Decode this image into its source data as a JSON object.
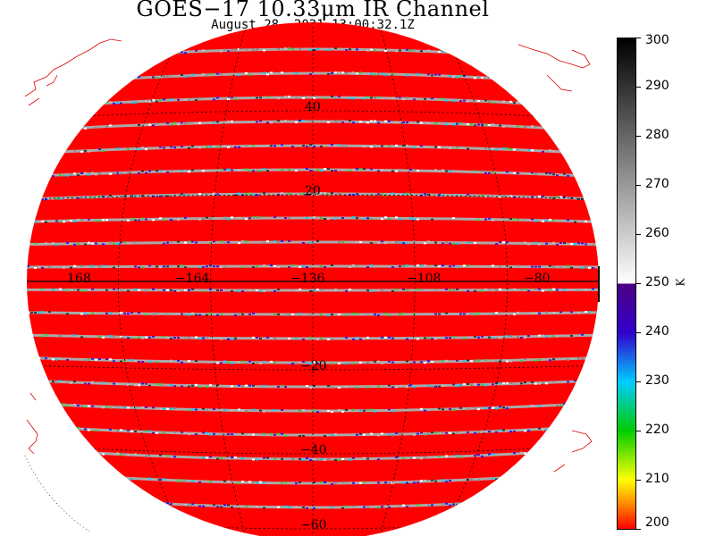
{
  "title": "GOES−17 10.33μm IR Channel",
  "subtitle": "August 28,  2021 13:00:32.1Z",
  "colors": {
    "disk_fill": "#ff0000",
    "coastline": "#dd0000",
    "gridline": "#000000",
    "stripe_colors": [
      "#888888",
      "#bbbbbb",
      "#ffffff",
      "#2222ee",
      "#33cc33",
      "#00ccff",
      "#7700aa",
      "#333333"
    ]
  },
  "gridlines": {
    "longitude_labels": [
      "168",
      "−164",
      "−136",
      "−108",
      "−80"
    ],
    "latitude_labels": [
      "40",
      "20",
      "−20",
      "−40",
      "−60"
    ]
  },
  "colorbar": {
    "unit": "K",
    "min": 200,
    "max": 300,
    "ticks": [
      "300",
      "290",
      "280",
      "270",
      "260",
      "250",
      "240",
      "230",
      "220",
      "210",
      "200"
    ],
    "gradient": [
      {
        "value": 300,
        "color": "#000000"
      },
      {
        "value": 250,
        "color": "#ffffff"
      },
      {
        "value": 250,
        "color": "#4b0082"
      },
      {
        "value": 240,
        "color": "#3300cc"
      },
      {
        "value": 230,
        "color": "#00ccff"
      },
      {
        "value": 220,
        "color": "#00cc00"
      },
      {
        "value": 210,
        "color": "#ffff00"
      },
      {
        "value": 205,
        "color": "#ff8800"
      },
      {
        "value": 200,
        "color": "#ff0000"
      }
    ]
  }
}
